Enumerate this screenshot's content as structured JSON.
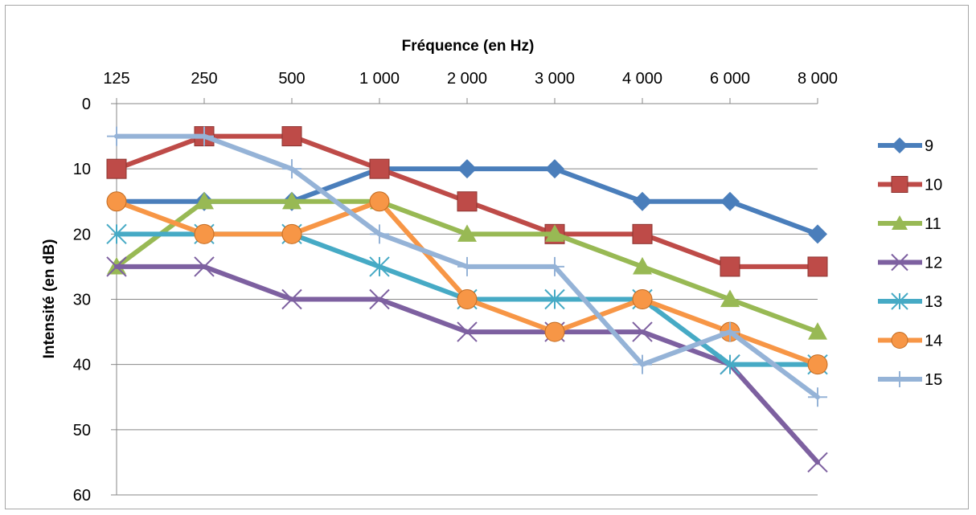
{
  "chart_data": {
    "type": "line",
    "xlabel": "Fréquence (en Hz)",
    "ylabel": "Intensité (en dB)",
    "categories": [
      "125",
      "250",
      "500",
      "1 000",
      "2 000",
      "3 000",
      "4 000",
      "6 000",
      "8 000"
    ],
    "x_axis_position": "top",
    "y_reversed": true,
    "ylim": [
      0,
      60
    ],
    "yticks": [
      "0",
      "10",
      "20",
      "30",
      "40",
      "50",
      "60"
    ],
    "grid": "horizontal",
    "legend_position": "right",
    "series": [
      {
        "name": "9",
        "color": "#4a7ebb",
        "marker": "diamond",
        "values": [
          15,
          15,
          15,
          10,
          10,
          10,
          15,
          15,
          20
        ]
      },
      {
        "name": "10",
        "color": "#be4b48",
        "marker": "square",
        "values": [
          10,
          5,
          5,
          10,
          15,
          20,
          20,
          25,
          25
        ]
      },
      {
        "name": "11",
        "color": "#98b954",
        "marker": "triangle",
        "values": [
          25,
          15,
          15,
          15,
          20,
          20,
          25,
          30,
          35
        ]
      },
      {
        "name": "12",
        "color": "#7d60a0",
        "marker": "x",
        "values": [
          25,
          25,
          30,
          30,
          35,
          35,
          35,
          40,
          55
        ]
      },
      {
        "name": "13",
        "color": "#46aac5",
        "marker": "star",
        "values": [
          20,
          20,
          20,
          25,
          30,
          30,
          30,
          40,
          40
        ]
      },
      {
        "name": "14",
        "color": "#f79646",
        "marker": "circle",
        "values": [
          15,
          20,
          20,
          15,
          30,
          35,
          30,
          35,
          40
        ]
      },
      {
        "name": "15",
        "color": "#95b3d7",
        "marker": "plus",
        "values": [
          5,
          5,
          10,
          20,
          25,
          25,
          40,
          35,
          45
        ]
      }
    ]
  }
}
